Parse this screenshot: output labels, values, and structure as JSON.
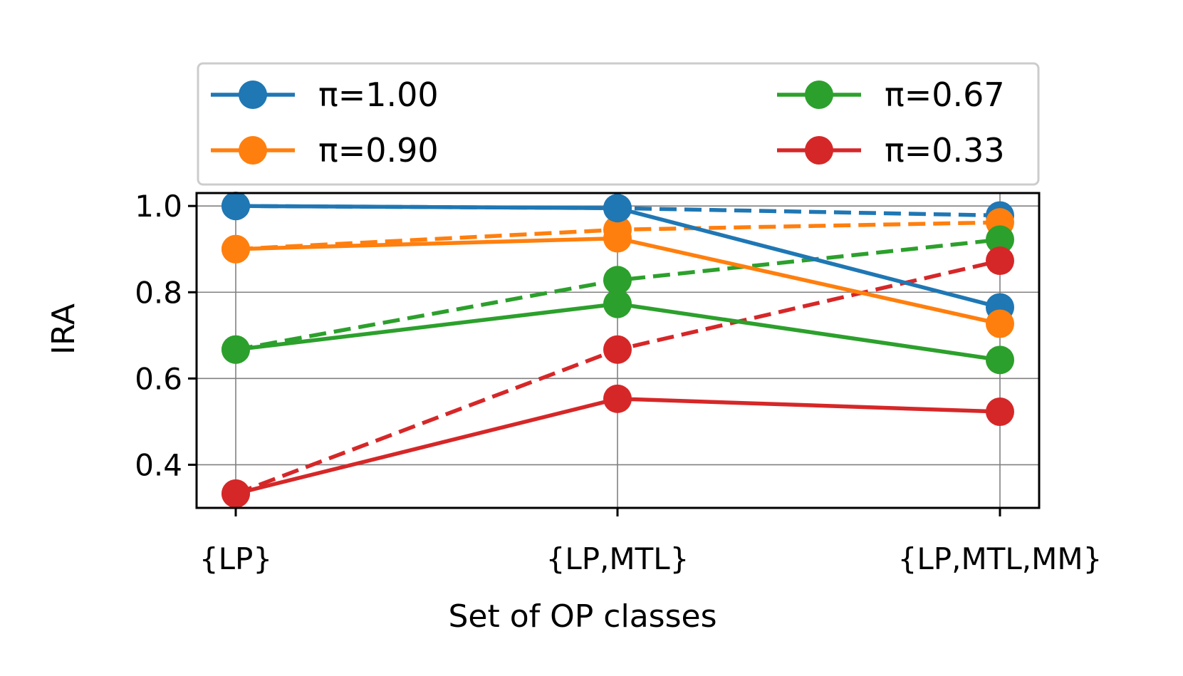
{
  "chart_data": {
    "type": "line",
    "xlabel": "Set of OP classes",
    "ylabel": "IRA",
    "categories": [
      "{LP}",
      "{LP,MTL}",
      "{LP,MTL,MM}"
    ],
    "ylim": [
      0.3,
      1.03
    ],
    "yticks": [
      "0.4",
      "0.6",
      "0.8",
      "1.0"
    ],
    "grid": true,
    "legend_position": "above plot, two columns",
    "series": [
      {
        "name": "π=1.00",
        "color": "#1f77b4",
        "style": "solid",
        "values": [
          1.0,
          0.995,
          0.765
        ]
      },
      {
        "name": "π=0.90",
        "color": "#ff7f0e",
        "style": "solid",
        "values": [
          0.9,
          0.925,
          0.727
        ]
      },
      {
        "name": "π=0.67",
        "color": "#2ca02c",
        "style": "solid",
        "values": [
          0.667,
          0.773,
          0.643
        ]
      },
      {
        "name": "π=0.33",
        "color": "#d62728",
        "style": "solid",
        "values": [
          0.333,
          0.553,
          0.523
        ]
      },
      {
        "name": "",
        "color": "#1f77b4",
        "style": "dashed",
        "values": [
          1.0,
          0.995,
          0.978
        ]
      },
      {
        "name": "",
        "color": "#ff7f0e",
        "style": "dashed",
        "values": [
          0.9,
          0.945,
          0.962
        ]
      },
      {
        "name": "",
        "color": "#2ca02c",
        "style": "dashed",
        "values": [
          0.667,
          0.828,
          0.922
        ]
      },
      {
        "name": "",
        "color": "#d62728",
        "style": "dashed",
        "values": [
          0.333,
          0.667,
          0.873
        ]
      }
    ]
  }
}
